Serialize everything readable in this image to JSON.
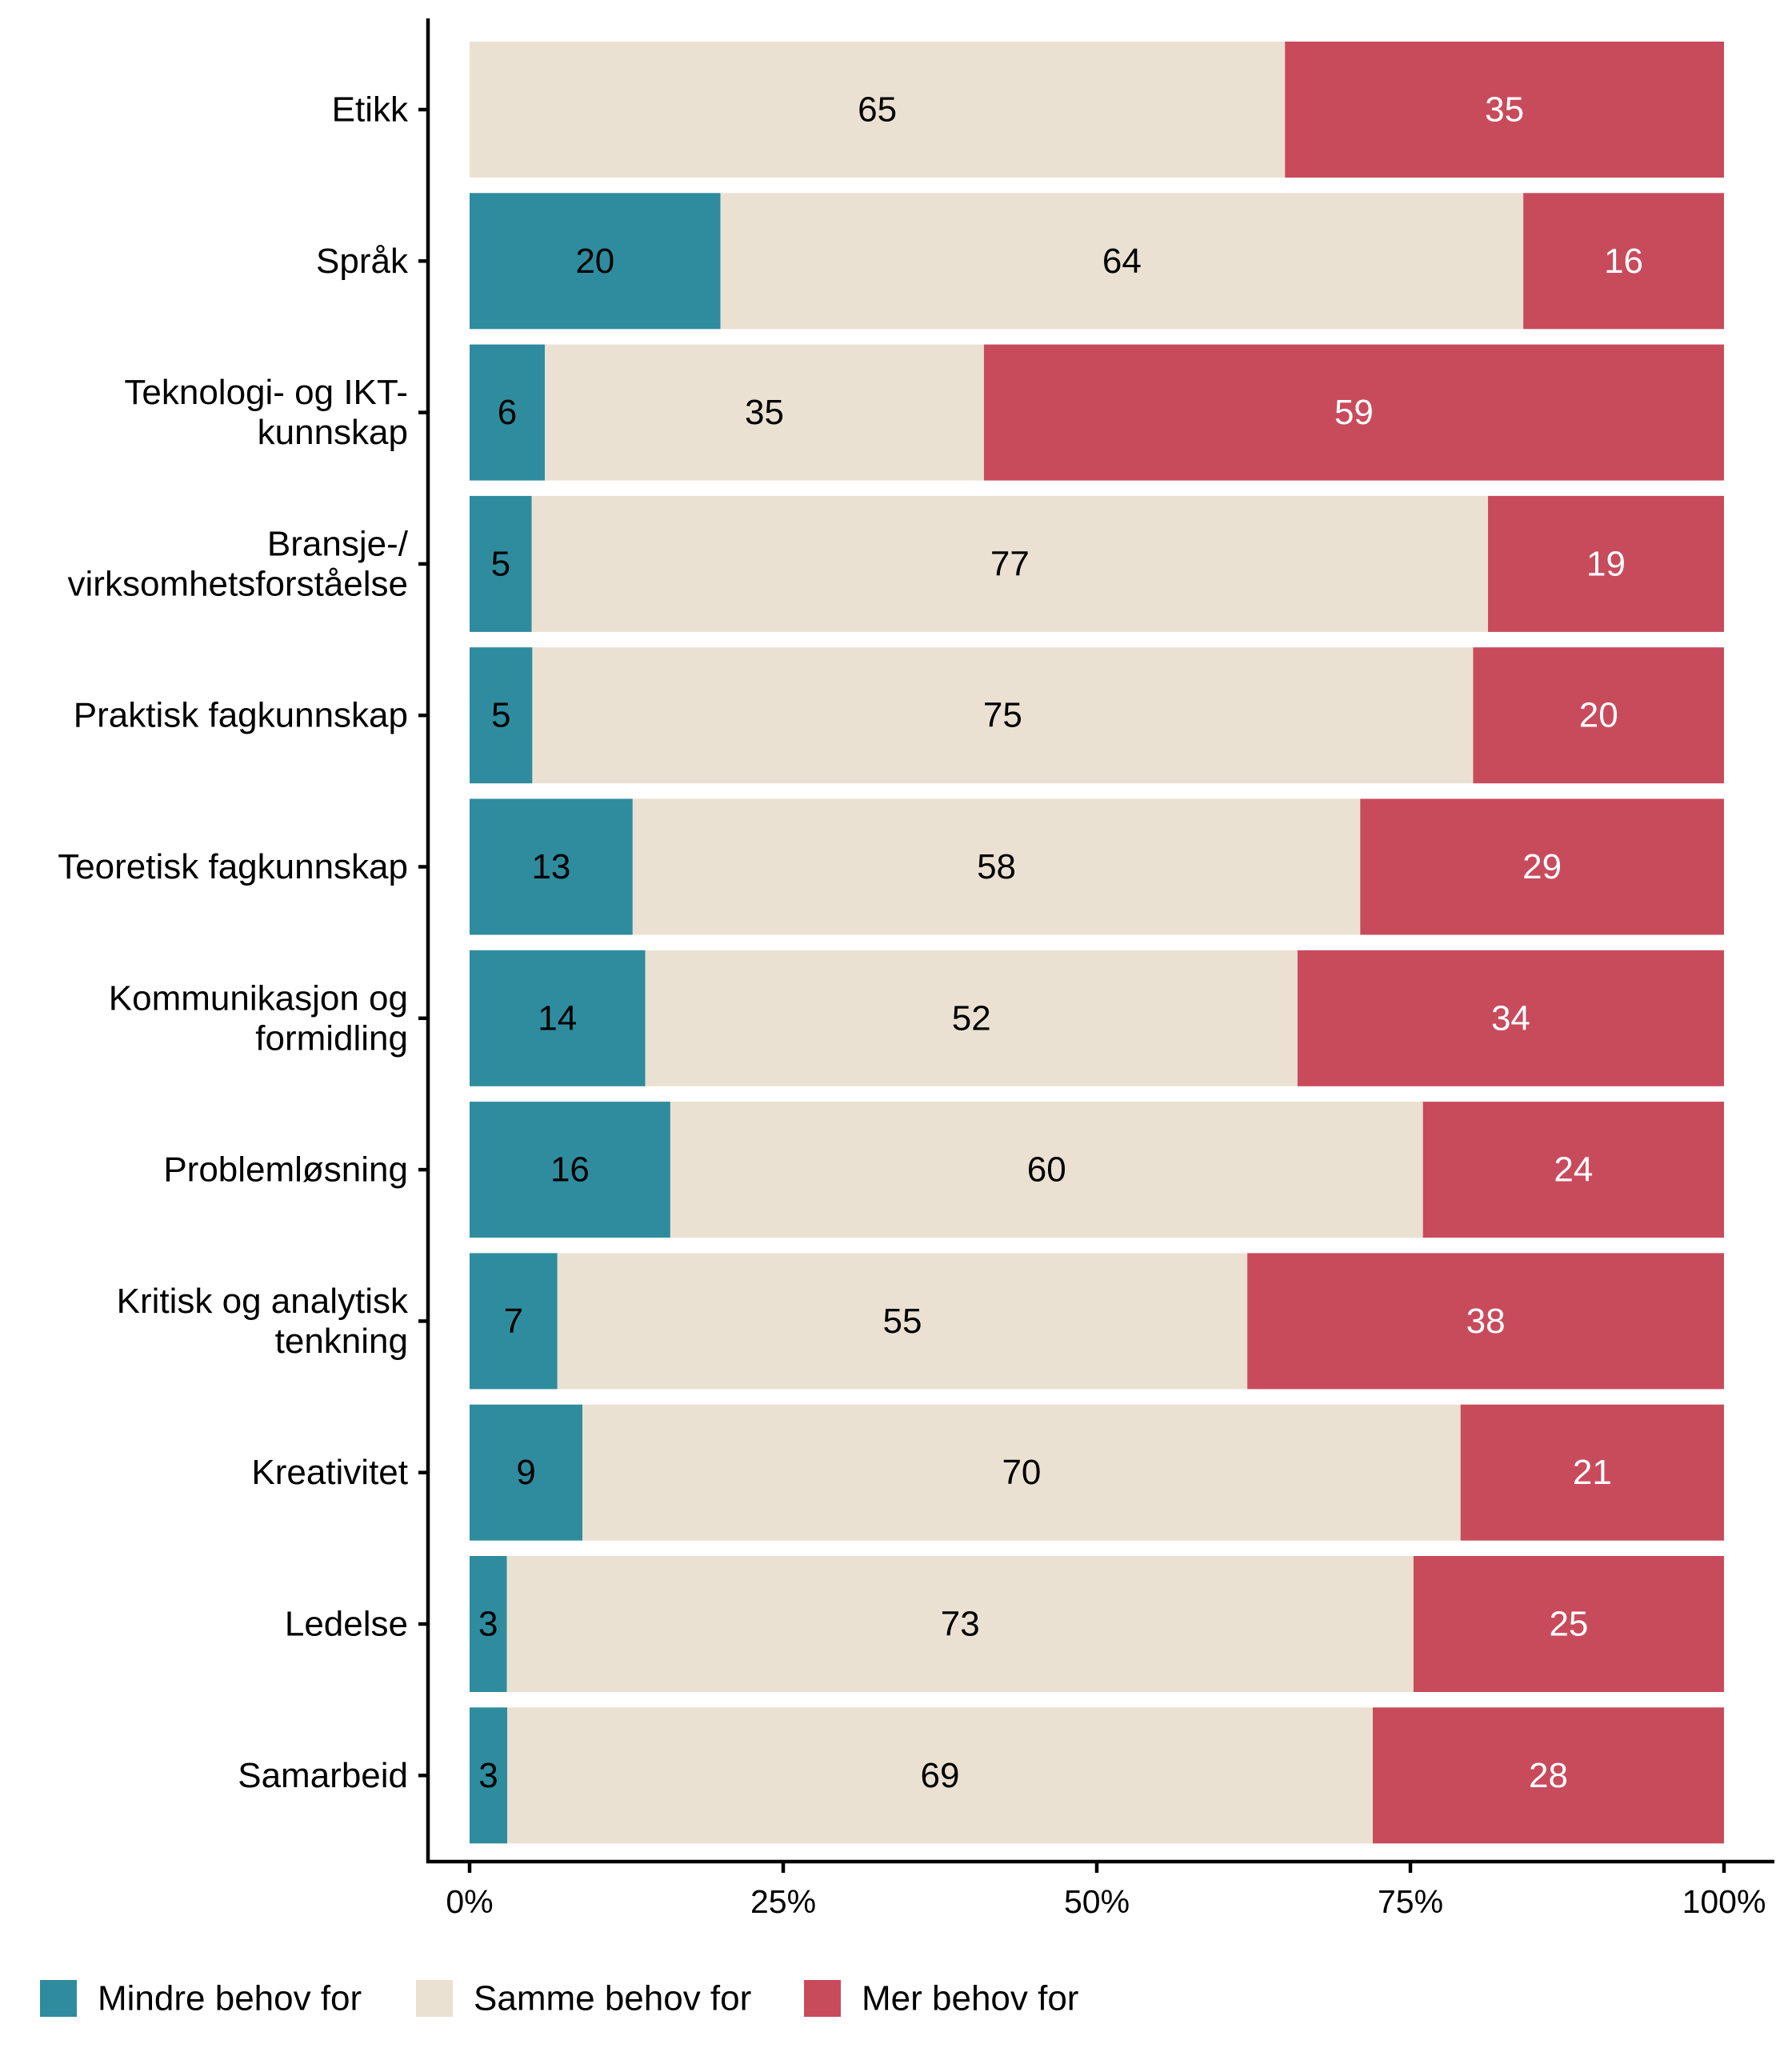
{
  "chart_data": {
    "type": "bar",
    "orientation": "horizontal",
    "stacked": "percent",
    "title": "",
    "xlabel": "",
    "ylabel": "",
    "xlim": [
      0,
      100
    ],
    "x_ticks": [
      "0%",
      "25%",
      "50%",
      "75%",
      "100%"
    ],
    "x_tick_values": [
      0,
      25,
      50,
      75,
      100
    ],
    "grid": false,
    "legend_position": "bottom-left",
    "categories": [
      [
        "Etikk"
      ],
      [
        "Språk"
      ],
      [
        "Teknologi- og IKT-",
        "kunnskap"
      ],
      [
        "Bransje-/",
        "virksomhetsforståelse"
      ],
      [
        "Praktisk fagkunnskap"
      ],
      [
        "Teoretisk fagkunnskap"
      ],
      [
        "Kommunikasjon og",
        "formidling"
      ],
      [
        "Problemløsning"
      ],
      [
        "Kritisk og analytisk",
        "tenkning"
      ],
      [
        "Kreativitet"
      ],
      [
        "Ledelse"
      ],
      [
        "Samarbeid"
      ]
    ],
    "series": [
      {
        "name": "Mindre behov for",
        "color": "#2E8C9E",
        "label_color": "#000000",
        "values": [
          0,
          20,
          6,
          5,
          5,
          13,
          14,
          16,
          7,
          9,
          3,
          3
        ]
      },
      {
        "name": "Samme behov for",
        "color": "#EBE1D2",
        "label_color": "#000000",
        "values": [
          65,
          64,
          35,
          77,
          75,
          58,
          52,
          60,
          55,
          70,
          73,
          69
        ]
      },
      {
        "name": "Mer behov for",
        "color": "#C84B5C",
        "label_color": "#FFFFFF",
        "values": [
          35,
          16,
          59,
          19,
          20,
          29,
          34,
          24,
          38,
          21,
          25,
          28
        ]
      }
    ]
  },
  "legend": {
    "items": [
      {
        "label": "Mindre behov for",
        "color": "#2E8C9E"
      },
      {
        "label": "Samme behov for",
        "color": "#EBE1D2"
      },
      {
        "label": "Mer behov for",
        "color": "#C84B5C"
      }
    ]
  }
}
